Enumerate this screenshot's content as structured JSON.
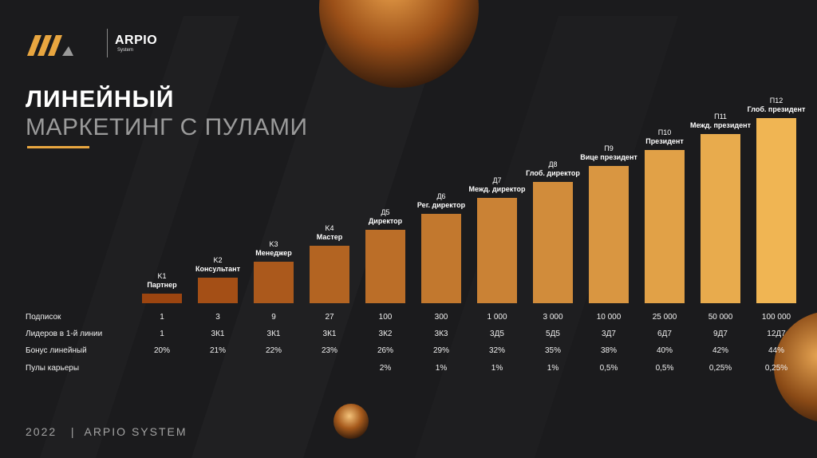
{
  "brand": {
    "name": "ARPIO",
    "sub": "System"
  },
  "title": {
    "line1": "ЛИНЕЙНЫЙ",
    "line2": "МАРКЕТИНГ С ПУЛАМИ"
  },
  "colors": {
    "accent": "#e8a640",
    "bar_start": "#9c4510",
    "bar_end": "#f0b553",
    "background": "#1b1b1d"
  },
  "chart_data": {
    "type": "bar",
    "categories": [
      "K1",
      "K2",
      "K3",
      "K4",
      "Д5",
      "Д6",
      "Д7",
      "Д8",
      "П9",
      "П10",
      "П11",
      "П12"
    ],
    "rank_names": [
      "Партнер",
      "Консультант",
      "Менеджер",
      "Мастер",
      "Директор",
      "Рег. директор",
      "Межд. директор",
      "Глоб. директор",
      "Вице президент",
      "Президент",
      "Межд. президент",
      "Глоб. президент"
    ],
    "values": [
      1,
      2,
      3,
      4,
      5,
      6,
      7,
      8,
      9,
      10,
      11,
      12
    ]
  },
  "table": {
    "rows": [
      {
        "label": "Подписок",
        "values": [
          "1",
          "3",
          "9",
          "27",
          "100",
          "300",
          "1 000",
          "3 000",
          "10 000",
          "25 000",
          "50 000",
          "100 000"
        ]
      },
      {
        "label": "Лидеров в 1-й линии",
        "values": [
          "1",
          "3К1",
          "3К1",
          "3К1",
          "3К2",
          "3К3",
          "3Д5",
          "5Д5",
          "3Д7",
          "6Д7",
          "9Д7",
          "12Д7"
        ]
      },
      {
        "label": "Бонус линейный",
        "values": [
          "20%",
          "21%",
          "22%",
          "23%",
          "26%",
          "29%",
          "32%",
          "35%",
          "38%",
          "40%",
          "42%",
          "44%"
        ]
      },
      {
        "label": "Пулы карьеры",
        "values": [
          "",
          "",
          "",
          "",
          "2%",
          "1%",
          "1%",
          "1%",
          "0,5%",
          "0,5%",
          "0,25%",
          "0,25%"
        ]
      }
    ]
  },
  "footer": {
    "year": "2022",
    "separator": "|",
    "company": "ARPIO SYSTEM"
  }
}
